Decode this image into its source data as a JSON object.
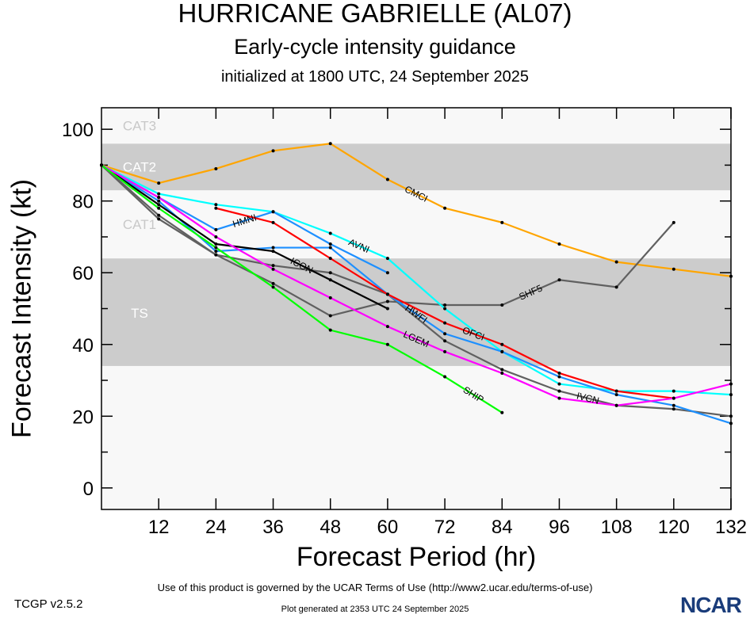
{
  "header": {
    "title": "HURRICANE GABRIELLE (AL07)",
    "subtitle": "Early-cycle intensity guidance",
    "initialized": "initialized at 1800 UTC, 24 September 2025"
  },
  "footer": {
    "version": "TCGP v2.5.2",
    "terms": "Use of this product is governed by the UCAR Terms of Use (http://www2.ucar.edu/terms-of-use)",
    "generated": "Plot generated at 2353 UTC   24 September 2025",
    "logo": "NCAR"
  },
  "chart_data": {
    "type": "line",
    "title": "HURRICANE GABRIELLE (AL07)",
    "xlabel": "Forecast Period (hr)",
    "ylabel": "Forecast Intensity (kt)",
    "xlim": [
      0,
      132
    ],
    "ylim": [
      -6,
      106
    ],
    "xticks": [
      12,
      24,
      36,
      48,
      60,
      72,
      84,
      96,
      108,
      120,
      132
    ],
    "yticks": [
      0,
      20,
      40,
      60,
      80,
      100
    ],
    "bands": [
      {
        "name": "TS",
        "range": [
          34,
          64
        ],
        "color": "#cccccc"
      },
      {
        "name": "CAT1",
        "range": [
          64,
          83
        ],
        "color": "#f8f8f8"
      },
      {
        "name": "CAT2",
        "range": [
          83,
          96
        ],
        "color": "#cccccc"
      },
      {
        "name": "CAT3",
        "range": [
          96,
          106
        ],
        "color": "#f8f8f8"
      }
    ],
    "series": [
      {
        "name": "CMCI",
        "color": "#ffa500",
        "x": [
          0,
          12,
          24,
          36,
          48,
          60,
          72,
          84,
          96,
          108,
          120,
          132
        ],
        "y": [
          90,
          85,
          89,
          94,
          96,
          86,
          78,
          74,
          68,
          63,
          61,
          59
        ]
      },
      {
        "name": "SHF5",
        "color": "#606060",
        "x": [
          0,
          12,
          24,
          36,
          48,
          60,
          72,
          84,
          96,
          108,
          120
        ],
        "y": [
          90,
          76,
          65,
          57,
          48,
          52,
          51,
          51,
          58,
          56,
          74
        ]
      },
      {
        "name": "IVCN",
        "color": "#606060",
        "x": [
          0,
          12,
          24,
          36,
          48,
          60,
          72,
          84,
          96,
          108,
          120,
          132
        ],
        "y": [
          90,
          75,
          65,
          62,
          60,
          54,
          41,
          33,
          27,
          23,
          22,
          20
        ]
      },
      {
        "name": "AVNI",
        "color": "#00ffff",
        "x": [
          0,
          12,
          24,
          36,
          48,
          60,
          72,
          84,
          96,
          108,
          120,
          132
        ],
        "y": [
          90,
          82,
          79,
          77,
          71,
          64,
          50,
          38,
          29,
          27,
          27,
          26
        ]
      },
      {
        "name": "HMNI",
        "color": "#1e90ff",
        "x": [
          0,
          12,
          24,
          36,
          48,
          60
        ],
        "y": [
          90,
          81,
          72,
          77,
          68,
          60
        ]
      },
      {
        "name": "HWFI",
        "color": "#1e90ff",
        "x": [
          0,
          12,
          24,
          36,
          48,
          60,
          72,
          84,
          96,
          108,
          120,
          132
        ],
        "y": [
          90,
          80,
          66,
          67,
          67,
          54,
          43,
          38,
          31,
          26,
          23,
          18
        ]
      },
      {
        "name": "OFCI",
        "color": "#ff0000",
        "x": [
          24,
          36,
          48,
          60,
          72,
          84,
          96,
          108,
          120
        ],
        "y": [
          78,
          74,
          64,
          54,
          46,
          40,
          32,
          27,
          25
        ]
      },
      {
        "name": "ICON",
        "color": "#000000",
        "x": [
          0,
          12,
          24,
          36,
          48,
          60
        ],
        "y": [
          90,
          79,
          68,
          66,
          58,
          50
        ]
      },
      {
        "name": "LGEM",
        "color": "#ff00ff",
        "x": [
          0,
          12,
          24,
          36,
          48,
          60,
          72,
          84,
          96,
          108,
          120,
          132
        ],
        "y": [
          90,
          81,
          70,
          61,
          53,
          45,
          38,
          32,
          25,
          23,
          25,
          29
        ]
      },
      {
        "name": "SHIP",
        "color": "#00ff00",
        "x": [
          0,
          12,
          24,
          36,
          48,
          60,
          72,
          84
        ],
        "y": [
          90,
          78,
          67,
          56,
          44,
          40,
          31,
          21
        ]
      }
    ]
  }
}
